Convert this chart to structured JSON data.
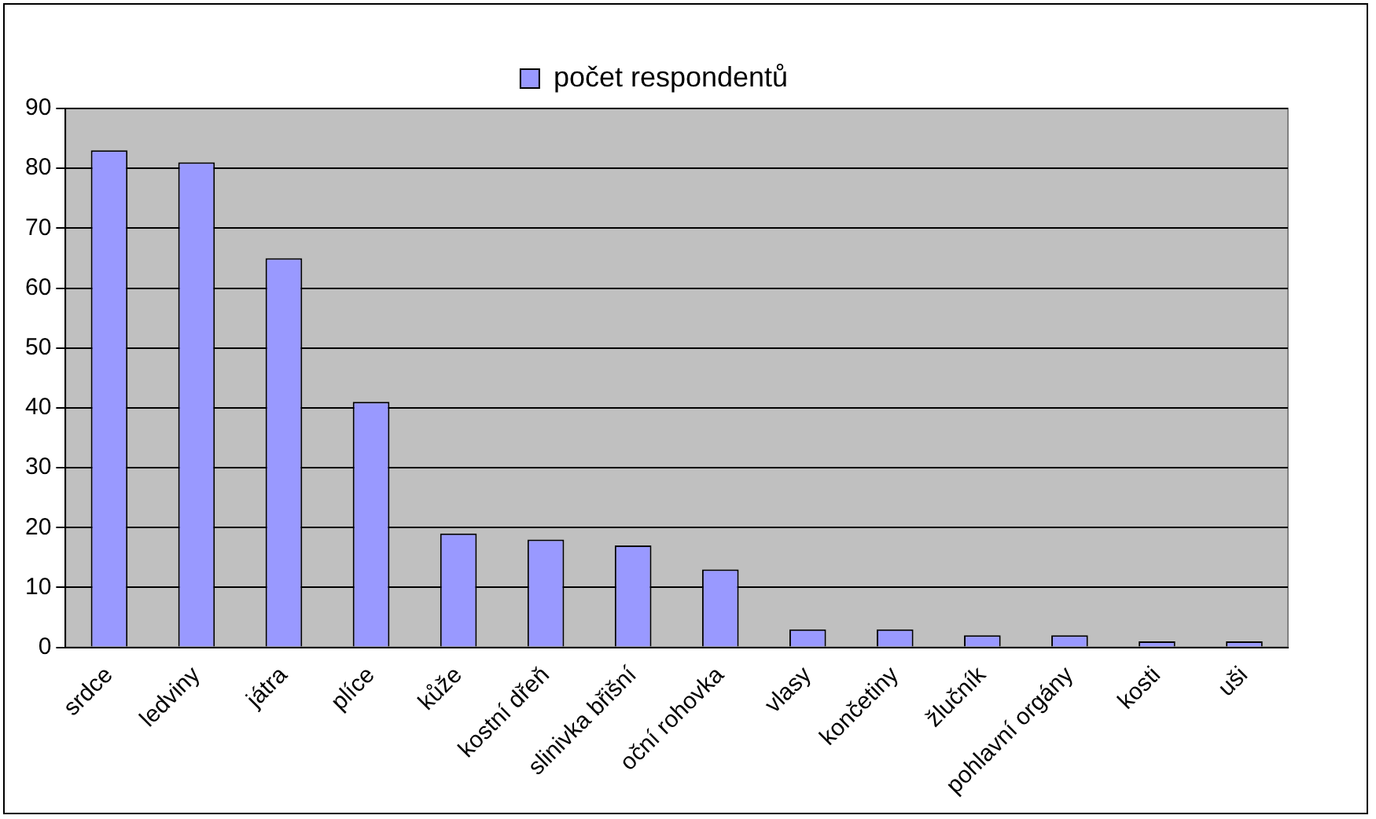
{
  "chart_data": {
    "type": "bar",
    "categories": [
      "srdce",
      "ledviny",
      "játra",
      "plíce",
      "kůže",
      "kostní dřeň",
      "slinivka břišní",
      "oční rohovka",
      "vlasy",
      "končetiny",
      "žlučník",
      "pohlavní orgány",
      "kosti",
      "uši"
    ],
    "series": [
      {
        "name": "počet respondentů",
        "color": "#9999ff",
        "values": [
          83,
          81,
          65,
          41,
          19,
          18,
          17,
          13,
          3,
          3,
          2,
          2,
          1,
          1
        ]
      }
    ],
    "ylim": [
      0,
      90
    ],
    "yticks": [
      0,
      10,
      20,
      30,
      40,
      50,
      60,
      70,
      80,
      90
    ],
    "grid": "y",
    "legend": "top"
  }
}
